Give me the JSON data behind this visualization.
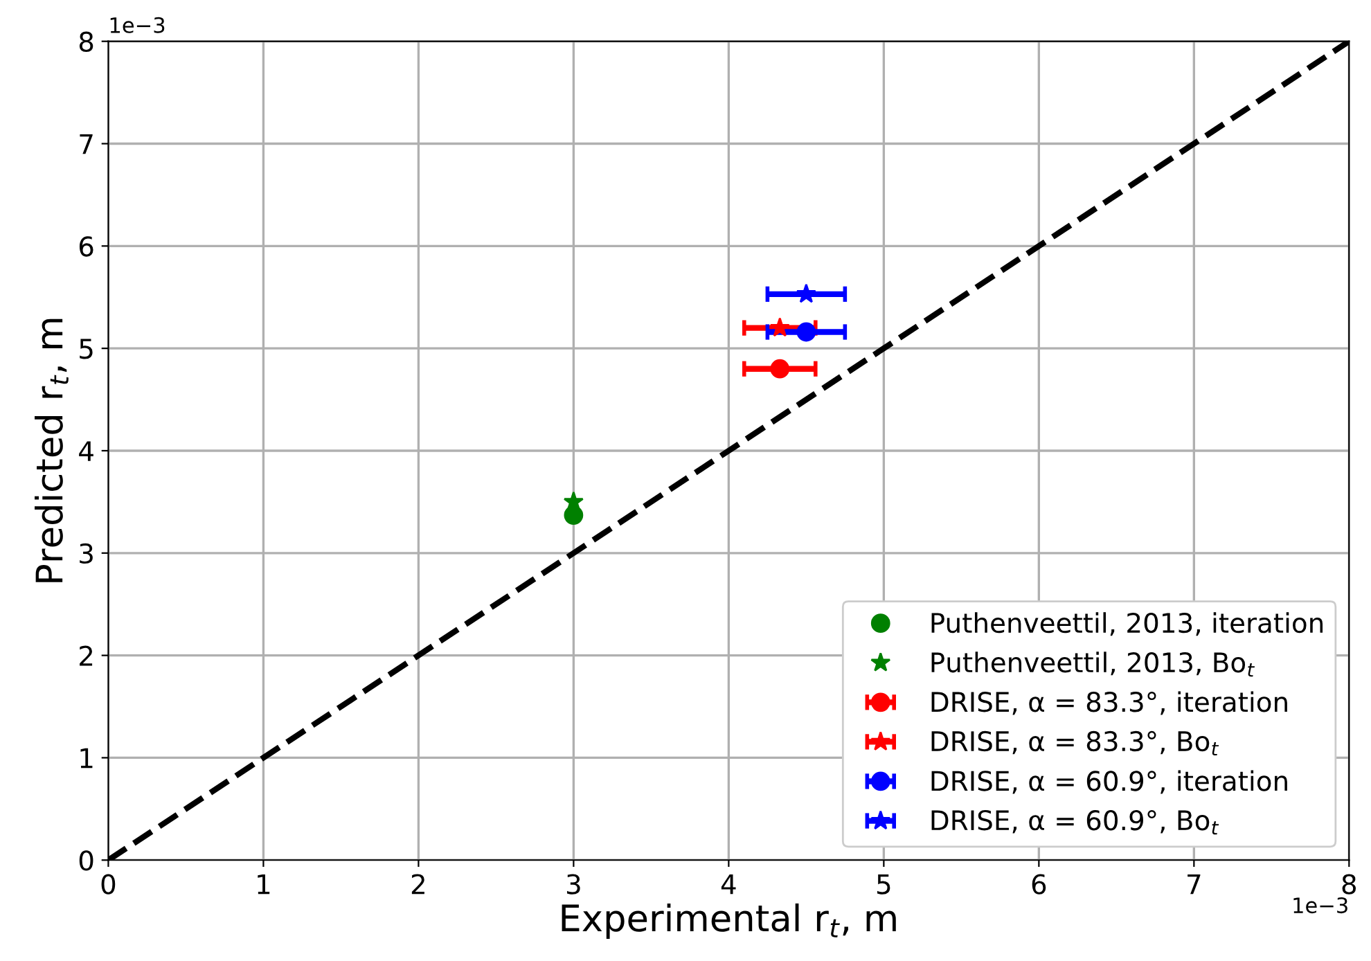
{
  "chart_data": {
    "type": "scatter",
    "xlabel": "Experimental r$_{t}$, m",
    "ylabel": "Predicted r$_{t}$, m",
    "xlim": [
      0,
      8
    ],
    "ylim": [
      0,
      8
    ],
    "xticks": [
      0,
      1,
      2,
      3,
      4,
      5,
      6,
      7,
      8
    ],
    "yticks": [
      0,
      1,
      2,
      3,
      4,
      5,
      6,
      7,
      8
    ],
    "annotations": [
      "1e−3",
      "1e−3"
    ],
    "grid": true,
    "legend": "bottom right",
    "series": [
      {
        "name": "Puthenveettil, 2013, iteration",
        "color": "#008000",
        "marker": "circle",
        "x": [
          3.0
        ],
        "values": [
          3.37
        ]
      },
      {
        "name": "Puthenveettil, 2013, Bo$_{t}$",
        "color": "#008000",
        "marker": "star",
        "x": [
          3.0
        ],
        "values": [
          3.5
        ]
      },
      {
        "name": "DRISE, α = 83.3°, iteration",
        "color": "#ff0000",
        "marker": "circle",
        "x": [
          4.33
        ],
        "values": [
          4.8
        ],
        "xerrors": [
          0.23
        ]
      },
      {
        "name": "DRISE, α = 83.3°, Bo$_{t}$",
        "color": "#ff0000",
        "marker": "star",
        "x": [
          4.33
        ],
        "values": [
          5.2
        ],
        "xerrors": [
          0.23
        ]
      },
      {
        "name": "DRISE, α = 60.9°, iteration",
        "color": "#0000ff",
        "marker": "circle",
        "x": [
          4.5
        ],
        "values": [
          5.16
        ],
        "xerrors": [
          0.25
        ]
      },
      {
        "name": "DRISE, α = 60.9°, Bo$_{t}$",
        "color": "#0000ff",
        "marker": "star",
        "x": [
          4.5
        ],
        "values": [
          5.53
        ],
        "xerrors": [
          0.25
        ]
      },
      {
        "type": "line",
        "color": "#000000",
        "line_style": "dashed",
        "marker": "none",
        "x": [
          0,
          8
        ],
        "values": [
          0,
          8
        ]
      }
    ]
  }
}
